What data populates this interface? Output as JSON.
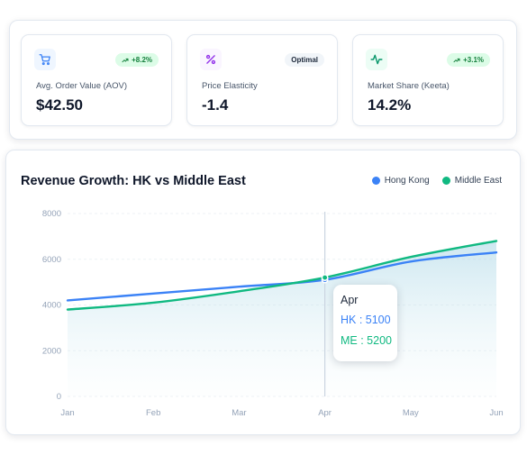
{
  "kpis": [
    {
      "icon": "cart-icon",
      "label": "Avg. Order Value (AOV)",
      "value": "$42.50",
      "badge": "+8.2%",
      "badge_style": "up"
    },
    {
      "icon": "percent-icon",
      "label": "Price Elasticity",
      "value": "-1.4",
      "badge": "Optimal",
      "badge_style": "neutral"
    },
    {
      "icon": "activity-icon",
      "label": "Market Share (Keeta)",
      "value": "14.2%",
      "badge": "+3.1%",
      "badge_style": "up"
    }
  ],
  "colors": {
    "hk": "#3b82f6",
    "me": "#10b981",
    "cart": "#3b82f6",
    "percent": "#9333ea",
    "activity": "#059669"
  },
  "chart_data": {
    "type": "line",
    "title": "Revenue Growth: HK vs Middle East",
    "categories": [
      "Jan",
      "Feb",
      "Mar",
      "Apr",
      "May",
      "Jun"
    ],
    "series": [
      {
        "name": "Hong Kong",
        "values": [
          4200,
          4500,
          4800,
          5100,
          5900,
          6300
        ]
      },
      {
        "name": "Middle East",
        "values": [
          3800,
          4100,
          4600,
          5200,
          6100,
          6800
        ]
      }
    ],
    "yticks": [
      "8000",
      "6000",
      "4000",
      "2000",
      "0"
    ],
    "ylim": [
      0,
      8000
    ],
    "legend_position": "top-right",
    "grid": true
  },
  "tooltip": {
    "title": "Apr",
    "hk_text": "HK : 5100",
    "me_text": "ME : 5200"
  }
}
